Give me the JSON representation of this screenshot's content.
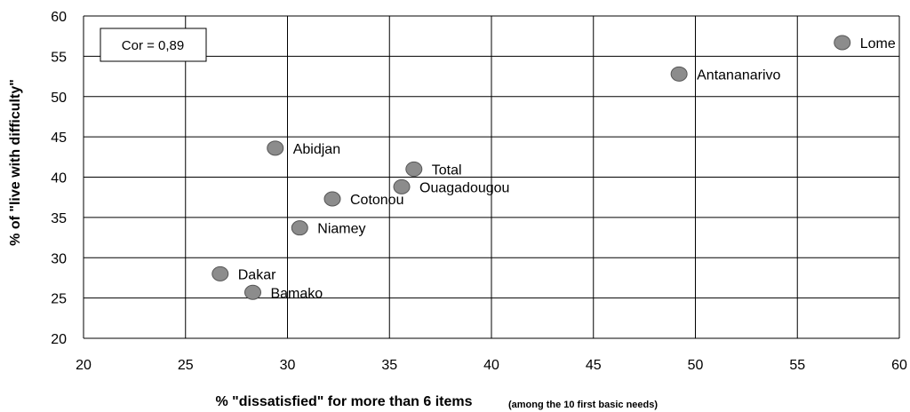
{
  "chart_data": {
    "type": "scatter",
    "xlabel": "% \"dissatisfied\" for more than 6 items",
    "xlabel_note": "(among the 10 first basic needs)",
    "ylabel": "% of \"live with difficulty\"",
    "xlim": [
      20,
      60
    ],
    "ylim": [
      20,
      60
    ],
    "x_ticks": [
      20,
      25,
      30,
      35,
      40,
      45,
      50,
      55,
      60
    ],
    "y_ticks": [
      20,
      25,
      30,
      35,
      40,
      45,
      50,
      55,
      60
    ],
    "grid": true,
    "annotation": "Cor = 0,89",
    "marker_color": "#8c8c8c",
    "points": [
      {
        "label": "Lome",
        "x": 57.2,
        "y": 56.7
      },
      {
        "label": "Antananarivo",
        "x": 49.2,
        "y": 52.8
      },
      {
        "label": "Abidjan",
        "x": 29.4,
        "y": 43.6
      },
      {
        "label": "Total",
        "x": 36.2,
        "y": 41.0
      },
      {
        "label": "Ouagadougou",
        "x": 35.6,
        "y": 38.8
      },
      {
        "label": "Cotonou",
        "x": 32.2,
        "y": 37.3
      },
      {
        "label": "Niamey",
        "x": 30.6,
        "y": 33.7
      },
      {
        "label": "Dakar",
        "x": 26.7,
        "y": 28.0
      },
      {
        "label": "Bamako",
        "x": 28.3,
        "y": 25.7
      }
    ]
  }
}
